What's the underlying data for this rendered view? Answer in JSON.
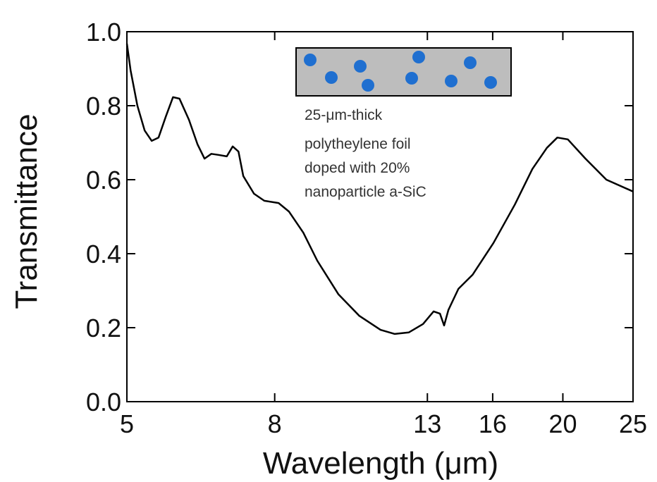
{
  "chart_data": {
    "type": "line",
    "x_label": "Wavelength (μm)",
    "y_label": "Transmittance",
    "annotation": [
      "25-μm-thick",
      "polytheylene foil",
      "doped with 20%",
      "nanoparticle a-SiC"
    ],
    "x_scale": "log",
    "xlim": [
      5,
      25
    ],
    "xticks": [
      5,
      8,
      13,
      16,
      20,
      25
    ],
    "ylim": [
      0,
      1
    ],
    "yticks": [
      {
        "value": 0,
        "label": "0.0"
      },
      0.2,
      0.4,
      0.6,
      0.8,
      {
        "value": 1,
        "label": "1.0"
      }
    ],
    "series": [
      {
        "color": "#000000",
        "x": [
          5,
          5.06,
          5.17,
          5.29,
          5.41,
          5.53,
          5.66,
          5.79,
          5.91,
          6.09,
          6.26,
          6.4,
          6.54,
          6.69,
          6.87,
          7.0,
          7.13,
          7.24,
          7.49,
          7.74,
          8.1,
          8.37,
          8.76,
          9.16,
          9.8,
          10.47,
          11.2,
          11.72,
          12.25,
          12.82,
          13.26,
          13.53,
          13.71,
          13.9,
          14.35,
          15.01,
          16.04,
          17.17,
          18.15,
          19.01,
          19.65,
          20.32,
          21.49,
          22.97,
          25
        ],
        "values": [
          0.968,
          0.895,
          0.8,
          0.733,
          0.705,
          0.714,
          0.771,
          0.823,
          0.819,
          0.762,
          0.695,
          0.657,
          0.67,
          0.667,
          0.663,
          0.69,
          0.676,
          0.61,
          0.562,
          0.543,
          0.537,
          0.514,
          0.457,
          0.381,
          0.29,
          0.232,
          0.194,
          0.183,
          0.187,
          0.21,
          0.244,
          0.238,
          0.206,
          0.248,
          0.305,
          0.343,
          0.429,
          0.533,
          0.629,
          0.686,
          0.714,
          0.709,
          0.657,
          0.6,
          0.568
        ]
      }
    ]
  }
}
